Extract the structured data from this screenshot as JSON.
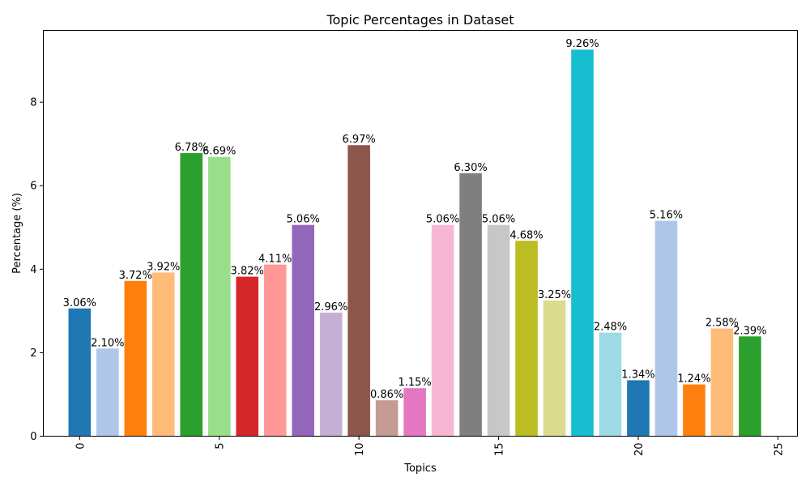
{
  "chart_data": {
    "type": "bar",
    "title": "Topic Percentages in Dataset",
    "xlabel": "Topics",
    "ylabel": "Percentage (%)",
    "xlim": [
      -1.3,
      25.7
    ],
    "ylim": [
      0,
      9.72
    ],
    "x_ticks": [
      0,
      5,
      10,
      15,
      20,
      25
    ],
    "y_ticks": [
      0,
      2,
      4,
      6,
      8
    ],
    "x_tick_rotation": 90,
    "grid": false,
    "label_suffix": "%",
    "categories": [
      0,
      1,
      2,
      3,
      4,
      5,
      6,
      7,
      8,
      9,
      10,
      11,
      12,
      13,
      14,
      15,
      16,
      17,
      18,
      19,
      20,
      21,
      22,
      23,
      24
    ],
    "values": [
      3.06,
      2.1,
      3.72,
      3.92,
      6.78,
      6.69,
      3.82,
      4.11,
      5.06,
      2.96,
      6.97,
      0.86,
      1.15,
      5.06,
      6.3,
      5.06,
      4.68,
      3.25,
      9.26,
      2.48,
      1.34,
      5.16,
      1.24,
      2.58,
      2.39
    ],
    "colors": [
      "#1f77b4",
      "#aec7e8",
      "#ff7f0e",
      "#ffbb78",
      "#2ca02c",
      "#98df8a",
      "#d62728",
      "#ff9896",
      "#9467bd",
      "#c5b0d5",
      "#8c564b",
      "#c49c94",
      "#e377c2",
      "#f7b6d2",
      "#7f7f7f",
      "#c7c7c7",
      "#bcbd22",
      "#dbdb8d",
      "#17becf",
      "#9edae5",
      "#1f77b4",
      "#aec7e8",
      "#ff7f0e",
      "#ffbb78",
      "#2ca02c"
    ]
  }
}
